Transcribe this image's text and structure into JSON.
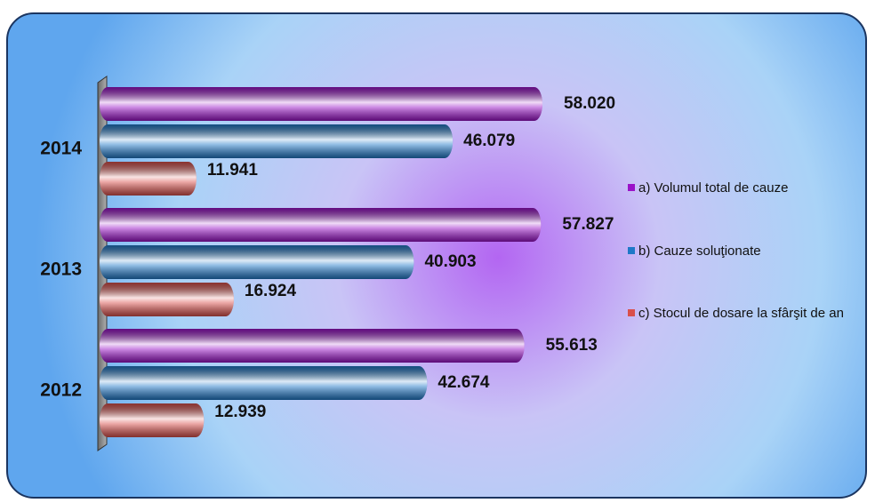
{
  "chart_data": {
    "type": "bar",
    "orientation": "horizontal",
    "categories": [
      "2014",
      "2013",
      "2012"
    ],
    "series": [
      {
        "name": "a) Volumul total de cauze",
        "color": "#9a12c8",
        "values": [
          58020,
          57827,
          55613
        ],
        "value_labels": [
          "58.020",
          "57.827",
          "55.613"
        ]
      },
      {
        "name": "b) Cauze soluţionate",
        "color": "#1f78c8",
        "values": [
          46079,
          40903,
          42674
        ],
        "value_labels": [
          "46.079",
          "40.903",
          "42.674"
        ]
      },
      {
        "name": "c) Stocul de dosare la sfârşit de an",
        "color": "#d9504c",
        "values": [
          11941,
          16924,
          12939
        ],
        "value_labels": [
          "11.941",
          "16.924",
          "12.939"
        ]
      }
    ],
    "legend": "right"
  }
}
